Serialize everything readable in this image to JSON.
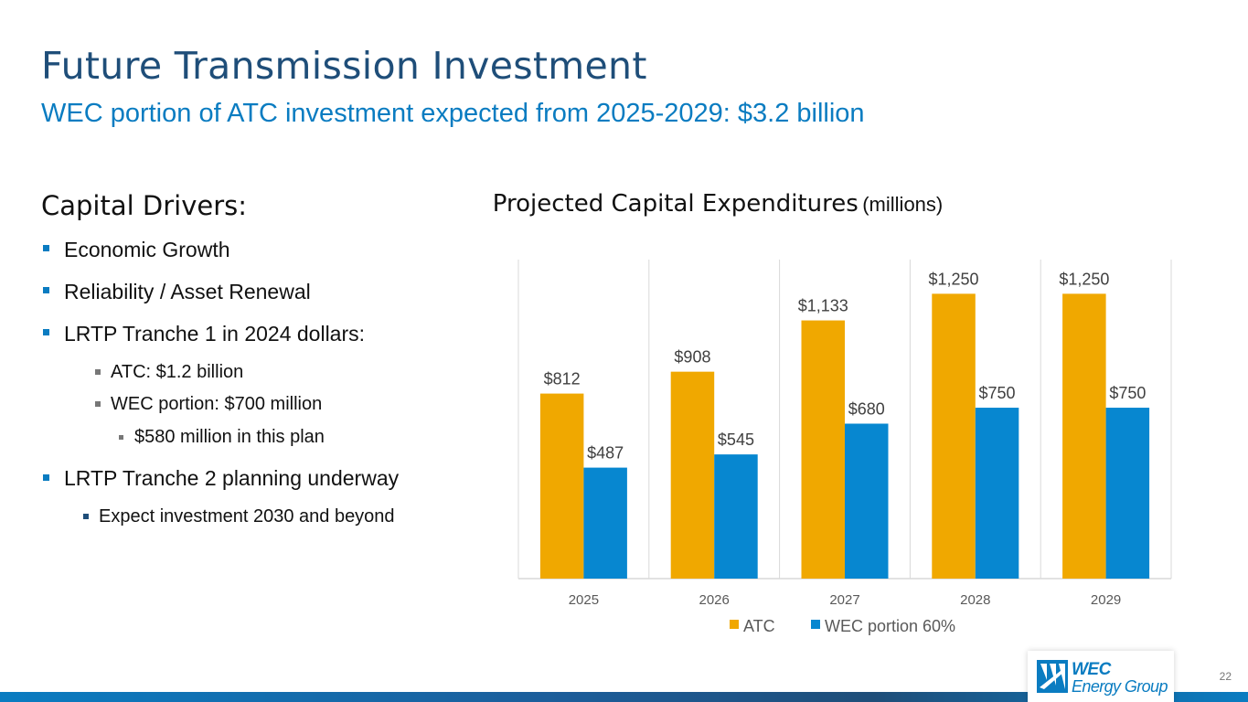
{
  "slide": {
    "title": "Future Transmission Investment",
    "subtitle": "WEC portion of ATC investment expected from 2025-2029: $3.2 billion",
    "page_number": "22"
  },
  "drivers": {
    "heading": "Capital Drivers:",
    "items": [
      {
        "text": "Economic Growth",
        "level": 1
      },
      {
        "text": "Reliability / Asset Renewal",
        "level": 1
      },
      {
        "text": "LRTP Tranche 1 in 2024 dollars:",
        "level": 1
      },
      {
        "text": "ATC: $1.2 billion",
        "level": 2
      },
      {
        "text": "WEC portion: $700 million",
        "level": 2
      },
      {
        "text": "$580 million in this plan",
        "level": 3
      },
      {
        "text": "LRTP Tranche 2 planning underway",
        "level": 1
      },
      {
        "text": "Expect investment 2030 and beyond",
        "level": 2
      }
    ]
  },
  "chart_data": {
    "type": "bar",
    "title": "Projected Capital Expenditures",
    "title_units": "(millions)",
    "categories": [
      "2025",
      "2026",
      "2027",
      "2028",
      "2029"
    ],
    "series": [
      {
        "name": "ATC",
        "color": "#f0a800",
        "values": [
          812,
          908,
          1133,
          1250,
          1250
        ],
        "labels": [
          "$812",
          "$908",
          "$1,133",
          "$1,250",
          "$1,250"
        ]
      },
      {
        "name": "WEC portion 60%",
        "color": "#0787d0",
        "values": [
          487,
          545,
          680,
          750,
          750
        ],
        "labels": [
          "$487",
          "$545",
          "$680",
          "$750",
          "$750"
        ]
      }
    ],
    "ylim": [
      0,
      1400
    ],
    "xlabel": "",
    "ylabel": "",
    "grid": "vertical",
    "legend": "bottom"
  },
  "logo": {
    "line1": "WEC",
    "line2": "Energy Group"
  },
  "colors": {
    "title": "#1f4e79",
    "accent": "#0a7cc1",
    "atc": "#f0a800",
    "wec": "#0787d0"
  }
}
